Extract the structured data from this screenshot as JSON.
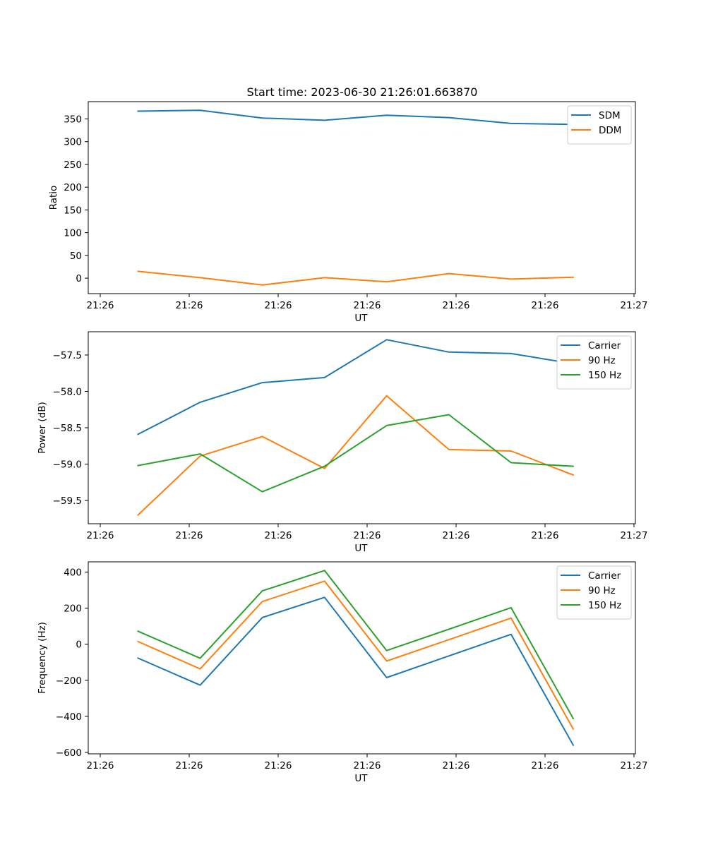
{
  "figure": {
    "title": "Start time: 2023-06-30 21:26:01.663870"
  },
  "colors": {
    "blue": "#1f77b4",
    "orange": "#ff7f0e",
    "green": "#2ca02c"
  },
  "chart_data": [
    {
      "type": "line",
      "title": "Start time: 2023-06-30 21:26:01.663870",
      "xlabel": "UT",
      "ylabel": "Ratio",
      "x_tick_labels": [
        "21:26",
        "21:26",
        "21:26",
        "21:26",
        "21:26",
        "21:26",
        "21:26",
        "21:27"
      ],
      "x": [
        1,
        2,
        3,
        4,
        5,
        6,
        7,
        8
      ],
      "xlim": [
        0.2,
        9.0
      ],
      "ylim": [
        -34,
        388
      ],
      "y_ticks": [
        0,
        50,
        100,
        150,
        200,
        250,
        300,
        350
      ],
      "y_tick_labels": [
        "0",
        "50",
        "100",
        "150",
        "200",
        "250",
        "300",
        "350"
      ],
      "legend": "top-right",
      "series": [
        {
          "name": "SDM",
          "color": "#1f77b4",
          "values": [
            367,
            369,
            352,
            347,
            358,
            353,
            340,
            338
          ]
        },
        {
          "name": "DDM",
          "color": "#ff7f0e",
          "values": [
            15,
            1,
            -15,
            1,
            -8,
            10,
            -2,
            2
          ]
        }
      ]
    },
    {
      "type": "line",
      "xlabel": "UT",
      "ylabel": "Power (dB)",
      "x_tick_labels": [
        "21:26",
        "21:26",
        "21:26",
        "21:26",
        "21:26",
        "21:26",
        "21:26",
        "21:27"
      ],
      "x": [
        1,
        2,
        3,
        4,
        5,
        6,
        7,
        8
      ],
      "xlim": [
        0.2,
        9.0
      ],
      "ylim": [
        -59.82,
        -57.18
      ],
      "y_ticks": [
        -59.5,
        -59.0,
        -58.5,
        -58.0,
        -57.5
      ],
      "y_tick_labels": [
        "−59.5",
        "−59.0",
        "−58.5",
        "−58.0",
        "−57.5"
      ],
      "legend": "top-right",
      "series": [
        {
          "name": "Carrier",
          "color": "#1f77b4",
          "values": [
            -58.59,
            -58.15,
            -57.88,
            -57.81,
            -57.29,
            -57.46,
            -57.48,
            -57.62
          ]
        },
        {
          "name": "90 Hz",
          "color": "#ff7f0e",
          "values": [
            -59.7,
            -58.89,
            -58.62,
            -59.06,
            -58.06,
            -58.8,
            -58.82,
            -59.15
          ]
        },
        {
          "name": "150 Hz",
          "color": "#2ca02c",
          "values": [
            -59.02,
            -58.86,
            -59.38,
            -59.03,
            -58.47,
            -58.32,
            -58.98,
            -59.03
          ]
        }
      ]
    },
    {
      "type": "line",
      "xlabel": "UT",
      "ylabel": "Frequency (Hz)",
      "x_tick_labels": [
        "21:26",
        "21:26",
        "21:26",
        "21:26",
        "21:26",
        "21:26",
        "21:26",
        "21:27"
      ],
      "x": [
        1,
        2,
        3,
        4,
        5,
        6,
        7,
        8
      ],
      "xlim": [
        0.2,
        9.0
      ],
      "ylim": [
        -608,
        457
      ],
      "y_ticks": [
        -600,
        -400,
        -200,
        0,
        200,
        400
      ],
      "y_tick_labels": [
        "−600",
        "−400",
        "−200",
        "0",
        "200",
        "400"
      ],
      "legend": "top-right",
      "series": [
        {
          "name": "Carrier",
          "color": "#1f77b4",
          "values": [
            -77,
            -227,
            148,
            260,
            -185,
            -65,
            55,
            -560
          ]
        },
        {
          "name": "90 Hz",
          "color": "#ff7f0e",
          "values": [
            15,
            -137,
            237,
            350,
            -93,
            25,
            145,
            -470
          ]
        },
        {
          "name": "150 Hz",
          "color": "#2ca02c",
          "values": [
            72,
            -78,
            296,
            409,
            -35,
            83,
            203,
            -412
          ]
        }
      ]
    }
  ]
}
